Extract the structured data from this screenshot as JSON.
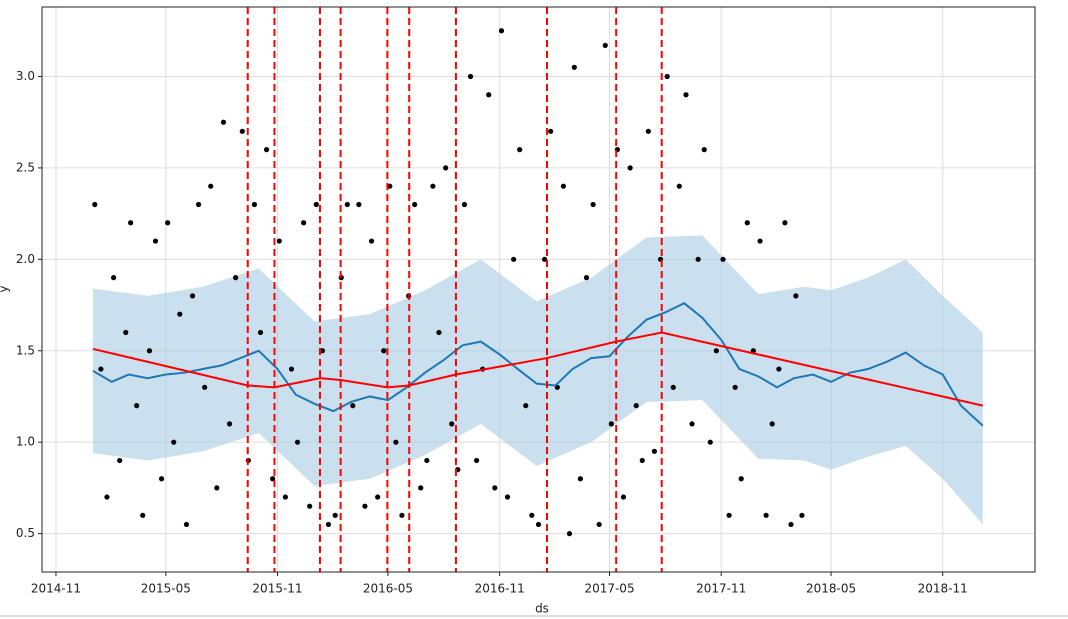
{
  "chart_data": {
    "type": "line",
    "xlabel": "ds",
    "ylabel": "y",
    "xlim": [
      "2014-10-09",
      "2019-04-02"
    ],
    "ylim": [
      0.29,
      3.38
    ],
    "xticks": [
      "2014-11",
      "2015-05",
      "2015-11",
      "2016-05",
      "2016-11",
      "2017-05",
      "2017-11",
      "2018-05",
      "2018-11"
    ],
    "yticks": [
      0.5,
      {
        "value": 1.0,
        "label": "1.0"
      },
      1.5,
      {
        "value": 2.0,
        "label": "2.0"
      },
      2.5,
      {
        "value": 3.0,
        "label": "3.0"
      }
    ],
    "grid": true,
    "series": [
      {
        "type": "scatter",
        "color": "#000000",
        "x": [
          "2015-01-04",
          "2015-01-14",
          "2015-01-24",
          "2015-02-04",
          "2015-02-14",
          "2015-02-24",
          "2015-03-04",
          "2015-03-14",
          "2015-03-24",
          "2015-04-04",
          "2015-04-14",
          "2015-04-24",
          "2015-05-04",
          "2015-05-14",
          "2015-05-24",
          "2015-06-04",
          "2015-06-14",
          "2015-06-24",
          "2015-07-04",
          "2015-07-14",
          "2015-07-24",
          "2015-08-04",
          "2015-08-14",
          "2015-08-24",
          "2015-09-04",
          "2015-09-14",
          "2015-09-24",
          "2015-10-04",
          "2015-10-14",
          "2015-10-24",
          "2015-11-04",
          "2015-11-14",
          "2015-11-24",
          "2015-12-04",
          "2015-12-14",
          "2015-12-24",
          "2016-01-04",
          "2016-01-14",
          "2016-01-24",
          "2016-02-04",
          "2016-02-14",
          "2016-02-24",
          "2016-03-04",
          "2016-03-14",
          "2016-03-24",
          "2016-04-04",
          "2016-04-14",
          "2016-04-24",
          "2016-05-04",
          "2016-05-14",
          "2016-05-24",
          "2016-06-04",
          "2016-06-14",
          "2016-06-24",
          "2016-07-04",
          "2016-07-14",
          "2016-07-24",
          "2016-08-04",
          "2016-08-14",
          "2016-08-24",
          "2016-09-04",
          "2016-09-14",
          "2016-09-24",
          "2016-10-04",
          "2016-10-14",
          "2016-10-24",
          "2016-11-04",
          "2016-11-14",
          "2016-11-24",
          "2016-12-04",
          "2016-12-14",
          "2016-12-24",
          "2017-01-04",
          "2017-01-14",
          "2017-01-24",
          "2017-02-04",
          "2017-02-14",
          "2017-02-24",
          "2017-03-04",
          "2017-03-14",
          "2017-03-24",
          "2017-04-04",
          "2017-04-14",
          "2017-04-24",
          "2017-05-04",
          "2017-05-14",
          "2017-05-24",
          "2017-06-04",
          "2017-06-14",
          "2017-06-24",
          "2017-07-04",
          "2017-07-14",
          "2017-07-24",
          "2017-08-04",
          "2017-08-14",
          "2017-08-24",
          "2017-09-04",
          "2017-09-14",
          "2017-09-24",
          "2017-10-04",
          "2017-10-14",
          "2017-10-24",
          "2017-11-04",
          "2017-11-14",
          "2017-11-24",
          "2017-12-04",
          "2017-12-14",
          "2017-12-24",
          "2018-01-04",
          "2018-01-14",
          "2018-01-24",
          "2018-02-04",
          "2018-02-14",
          "2018-02-24",
          "2018-03-04",
          "2018-03-14"
        ],
        "values": [
          2.3,
          1.4,
          0.7,
          1.9,
          0.9,
          1.6,
          2.2,
          1.2,
          0.6,
          1.5,
          2.1,
          0.8,
          2.2,
          1.0,
          1.7,
          0.55,
          1.8,
          2.3,
          1.3,
          2.4,
          0.75,
          2.75,
          1.1,
          1.9,
          2.7,
          0.9,
          2.3,
          1.6,
          2.6,
          0.8,
          2.1,
          0.7,
          1.4,
          1.0,
          2.2,
          0.65,
          2.3,
          1.5,
          0.55,
          0.6,
          1.9,
          2.3,
          1.2,
          2.3,
          0.65,
          2.1,
          0.7,
          1.5,
          2.4,
          1.0,
          0.6,
          1.8,
          2.3,
          0.75,
          0.9,
          2.4,
          1.6,
          2.5,
          1.1,
          0.85,
          2.3,
          3.0,
          0.9,
          1.4,
          2.9,
          0.75,
          3.25,
          0.7,
          2.0,
          2.6,
          1.2,
          0.6,
          0.55,
          2.0,
          2.7,
          1.3,
          2.4,
          0.5,
          3.05,
          0.8,
          1.9,
          2.3,
          0.55,
          3.17,
          1.1,
          2.6,
          0.7,
          2.5,
          1.2,
          0.9,
          2.7,
          0.95,
          2.0,
          3.0,
          1.3,
          2.4,
          2.9,
          1.1,
          2.0,
          2.6,
          1.0,
          1.5,
          2.0,
          0.6,
          1.3,
          0.8,
          2.2,
          1.5,
          2.1,
          0.6,
          1.1,
          1.4,
          2.2,
          0.55,
          1.8,
          0.6
        ]
      },
      {
        "type": "band",
        "color": "#a6cbe3",
        "x": [
          "2015-01-01",
          "2015-04-01",
          "2015-07-01",
          "2015-10-01",
          "2016-01-01",
          "2016-04-01",
          "2016-07-01",
          "2016-10-01",
          "2017-01-01",
          "2017-04-01",
          "2017-07-01",
          "2017-10-01",
          "2018-01-01",
          "2018-03-18",
          "2018-05-01",
          "2018-07-01",
          "2018-09-01",
          "2018-11-01",
          "2019-01-06"
        ],
        "lower": [
          0.94,
          0.9,
          0.95,
          1.05,
          0.76,
          0.8,
          0.93,
          1.1,
          0.87,
          1.0,
          1.22,
          1.23,
          0.91,
          0.9,
          0.85,
          0.92,
          0.98,
          0.8,
          0.55
        ],
        "upper": [
          1.84,
          1.8,
          1.85,
          1.95,
          1.66,
          1.7,
          1.83,
          2.0,
          1.77,
          1.9,
          2.12,
          2.13,
          1.81,
          1.85,
          1.83,
          1.9,
          2.0,
          1.8,
          1.6
        ]
      },
      {
        "type": "line",
        "color": "#1f77b4",
        "width": 2,
        "x": [
          "2015-01-01",
          "2015-02-01",
          "2015-03-01",
          "2015-04-01",
          "2015-05-01",
          "2015-06-01",
          "2015-07-01",
          "2015-08-01",
          "2015-09-01",
          "2015-10-01",
          "2015-11-01",
          "2015-12-01",
          "2016-01-01",
          "2016-02-01",
          "2016-03-01",
          "2016-04-01",
          "2016-05-01",
          "2016-06-01",
          "2016-07-01",
          "2016-08-01",
          "2016-09-01",
          "2016-10-01",
          "2016-11-01",
          "2016-12-01",
          "2017-01-01",
          "2017-02-01",
          "2017-03-01",
          "2017-04-01",
          "2017-05-01",
          "2017-06-01",
          "2017-07-01",
          "2017-08-01",
          "2017-09-01",
          "2017-10-01",
          "2017-11-01",
          "2017-12-01",
          "2018-01-01",
          "2018-02-01",
          "2018-03-01",
          "2018-04-01",
          "2018-05-01",
          "2018-06-01",
          "2018-07-01",
          "2018-08-01",
          "2018-09-01",
          "2018-10-01",
          "2018-11-01",
          "2018-12-01",
          "2019-01-06"
        ],
        "values": [
          1.39,
          1.33,
          1.37,
          1.35,
          1.37,
          1.38,
          1.4,
          1.42,
          1.46,
          1.5,
          1.4,
          1.26,
          1.21,
          1.17,
          1.22,
          1.25,
          1.23,
          1.3,
          1.38,
          1.45,
          1.53,
          1.55,
          1.48,
          1.4,
          1.32,
          1.31,
          1.4,
          1.46,
          1.47,
          1.58,
          1.67,
          1.71,
          1.76,
          1.68,
          1.56,
          1.4,
          1.36,
          1.3,
          1.35,
          1.37,
          1.33,
          1.38,
          1.4,
          1.44,
          1.49,
          1.42,
          1.37,
          1.2,
          1.09
        ]
      },
      {
        "type": "line",
        "color": "#ff0000",
        "width": 2,
        "x": [
          "2015-01-01",
          "2015-09-13",
          "2015-10-27",
          "2016-01-10",
          "2016-02-13",
          "2016-04-30",
          "2016-06-05",
          "2016-08-21",
          "2017-01-18",
          "2017-05-12",
          "2017-07-26",
          "2019-01-06"
        ],
        "values": [
          1.51,
          1.31,
          1.3,
          1.35,
          1.34,
          1.3,
          1.31,
          1.37,
          1.46,
          1.55,
          1.6,
          1.2
        ]
      }
    ],
    "changepoints": {
      "color": "#ff0000",
      "x": [
        "2015-09-13",
        "2015-10-27",
        "2016-01-10",
        "2016-02-13",
        "2016-04-30",
        "2016-06-05",
        "2016-08-21",
        "2017-01-18",
        "2017-05-12",
        "2017-07-26"
      ]
    }
  }
}
